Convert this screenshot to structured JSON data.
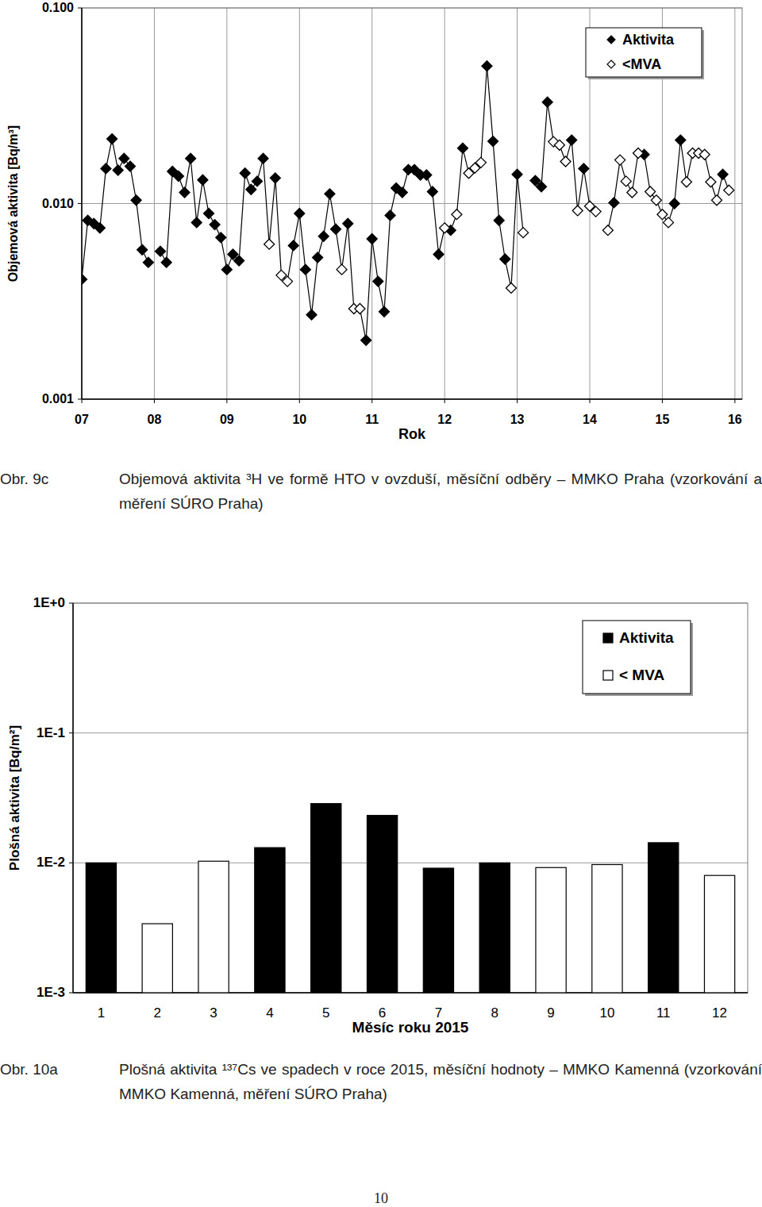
{
  "chart_data": [
    {
      "type": "line",
      "y_label": "Objemová aktivita [Bq/m³]",
      "x_label": "Rok",
      "log": "y",
      "grid": true,
      "legend": "top-right",
      "xlim": [
        2007,
        2016.1
      ],
      "xticks": [
        {
          "value": 2007,
          "label": "07"
        },
        {
          "value": 2008,
          "label": "08"
        },
        {
          "value": 2009,
          "label": "09"
        },
        {
          "value": 2010,
          "label": "10"
        },
        {
          "value": 2011,
          "label": "11"
        },
        {
          "value": 2012,
          "label": "12"
        },
        {
          "value": 2013,
          "label": "13"
        },
        {
          "value": 2014,
          "label": "14"
        },
        {
          "value": 2015,
          "label": "15"
        },
        {
          "value": 2016,
          "label": "16"
        }
      ],
      "ylim": [
        0.001,
        0.1
      ],
      "yticks": [
        0.001,
        {
          "value": 0.01,
          "label": "0.010"
        },
        {
          "value": 0.1,
          "label": "0.100"
        }
      ],
      "x": [
        2007,
        2007.083,
        2007.167,
        2007.25,
        2007.333,
        2007.417,
        2007.5,
        2007.583,
        2007.667,
        2007.75,
        2007.833,
        2007.917,
        2008,
        2008.083,
        2008.167,
        2008.25,
        2008.333,
        2008.417,
        2008.5,
        2008.583,
        2008.667,
        2008.75,
        2008.833,
        2008.917,
        2009,
        2009.083,
        2009.167,
        2009.25,
        2009.333,
        2009.417,
        2009.5,
        2009.583,
        2009.667,
        2009.75,
        2009.833,
        2009.917,
        2010,
        2010.083,
        2010.167,
        2010.25,
        2010.333,
        2010.417,
        2010.5,
        2010.583,
        2010.667,
        2010.75,
        2010.833,
        2010.917,
        2011,
        2011.083,
        2011.167,
        2011.25,
        2011.333,
        2011.417,
        2011.5,
        2011.583,
        2011.667,
        2011.75,
        2011.833,
        2011.917,
        2012,
        2012.083,
        2012.167,
        2012.25,
        2012.333,
        2012.417,
        2012.5,
        2012.583,
        2012.667,
        2012.75,
        2012.833,
        2012.917,
        2013,
        2013.083,
        2013.167,
        2013.25,
        2013.333,
        2013.417,
        2013.5,
        2013.583,
        2013.667,
        2013.75,
        2013.833,
        2013.917,
        2014,
        2014.083,
        2014.167,
        2014.25,
        2014.333,
        2014.417,
        2014.5,
        2014.583,
        2014.667,
        2014.75,
        2014.833,
        2014.917,
        2015,
        2015.083,
        2015.167,
        2015.25,
        2015.333,
        2015.417,
        2015.5,
        2015.583,
        2015.667,
        2015.75,
        2015.833,
        2015.917
      ],
      "series": [
        {
          "name": "Aktivita",
          "color": "#000000",
          "marker": "diamond",
          "values": [
            0.0041,
            0.0082,
            0.0079,
            0.0075,
            0.0151,
            0.0214,
            0.0148,
            0.017,
            0.0155,
            0.0104,
            0.0058,
            0.005,
            null,
            0.0057,
            0.005,
            0.0146,
            0.0138,
            0.0114,
            0.017,
            0.008,
            0.0132,
            0.0089,
            0.0078,
            0.0067,
            0.0046,
            0.0055,
            0.0051,
            0.0143,
            0.0118,
            0.013,
            0.017,
            null,
            0.0135,
            null,
            null,
            0.0061,
            0.0089,
            0.0046,
            0.0027,
            0.0053,
            0.0068,
            0.0112,
            0.0074,
            null,
            0.0079,
            null,
            null,
            0.002,
            0.0066,
            0.004,
            0.0028,
            0.0087,
            0.012,
            0.0114,
            0.0149,
            0.0149,
            0.014,
            0.014,
            0.0115,
            0.0055,
            null,
            0.0073,
            null,
            0.0192,
            null,
            null,
            null,
            0.0505,
            0.0208,
            0.0082,
            0.0052,
            null,
            0.0141,
            null,
            null,
            0.0131,
            0.0122,
            0.033,
            null,
            null,
            null,
            0.0211,
            null,
            0.0151,
            null,
            null,
            null,
            null,
            0.0101,
            null,
            null,
            null,
            null,
            0.0178,
            null,
            null,
            null,
            null,
            0.01,
            0.0211,
            null,
            null,
            null,
            null,
            null,
            null,
            0.0141,
            null
          ]
        },
        {
          "name": "<MVA",
          "color": "#000000",
          "marker": "diamond-open",
          "values": [
            null,
            null,
            null,
            null,
            null,
            null,
            null,
            null,
            null,
            null,
            null,
            null,
            null,
            null,
            null,
            null,
            null,
            null,
            null,
            null,
            null,
            null,
            null,
            null,
            null,
            null,
            null,
            null,
            null,
            null,
            null,
            0.0062,
            null,
            0.0043,
            0.004,
            null,
            null,
            null,
            null,
            null,
            null,
            null,
            null,
            0.0046,
            null,
            0.0029,
            0.0029,
            null,
            null,
            null,
            null,
            null,
            null,
            null,
            null,
            null,
            null,
            null,
            null,
            null,
            0.0075,
            null,
            0.0088,
            null,
            0.0143,
            0.0152,
            0.0162,
            null,
            null,
            null,
            null,
            0.0037,
            null,
            0.0071,
            null,
            null,
            null,
            null,
            0.0207,
            0.0199,
            0.0164,
            null,
            0.0092,
            null,
            0.0097,
            0.0091,
            null,
            0.0073,
            null,
            0.0167,
            0.013,
            0.0114,
            0.0181,
            null,
            0.0115,
            0.0104,
            0.0088,
            0.008,
            null,
            null,
            0.0129,
            0.0181,
            0.0181,
            0.0178,
            0.0129,
            0.0104,
            null,
            0.0117
          ]
        }
      ]
    },
    {
      "type": "bar",
      "y_label": "Plošná aktivita [Bq/m²]",
      "x_label": "Měsíc roku 2015",
      "log": "y",
      "grid": true,
      "legend": "top-right",
      "ylim": [
        0.001,
        1
      ],
      "yticks": [
        {
          "value": 0.001,
          "label": "1E-3"
        },
        {
          "value": 0.01,
          "label": "1E-2"
        },
        {
          "value": 0.1,
          "label": "1E-1"
        },
        {
          "value": 1,
          "label": "1E+0"
        }
      ],
      "categories": [
        "1",
        "2",
        "3",
        "4",
        "5",
        "6",
        "7",
        "8",
        "9",
        "10",
        "11",
        "12"
      ],
      "series": [
        {
          "name": "Aktivita",
          "color": "#000000",
          "values": [
            0.01,
            null,
            null,
            0.0131,
            0.0286,
            0.0232,
            0.0091,
            0.01,
            null,
            null,
            0.0143,
            null
          ]
        },
        {
          "name": "< MVA",
          "color": "#ffffff",
          "values": [
            null,
            0.0034,
            0.0103,
            null,
            null,
            null,
            null,
            null,
            0.0092,
            0.0097,
            null,
            0.008
          ]
        }
      ]
    }
  ],
  "captions": [
    {
      "label": "Obr. 9c",
      "text": "Objemová aktivita ³H ve formě HTO v ovzduší, měsíční odběry – MMKO Praha (vzorkování a měření SÚRO Praha)"
    },
    {
      "label": "Obr. 10a",
      "text": "Plošná aktivita ¹³⁷Cs ve spadech v roce 2015, měsíční hodnoty – MMKO Kamenná (vzorkování MMKO Kamenná, měření SÚRO Praha)"
    }
  ],
  "page_number": "10"
}
